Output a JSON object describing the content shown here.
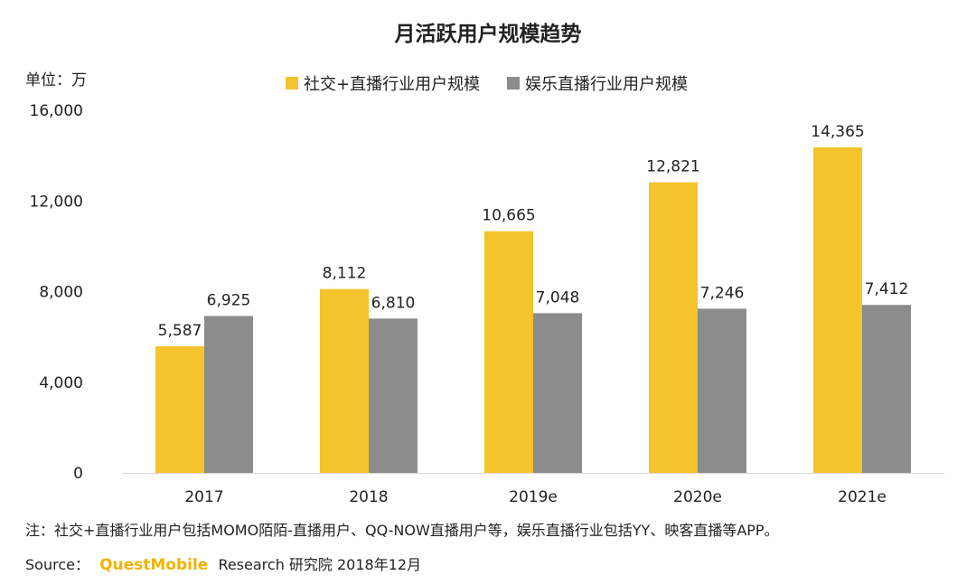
{
  "chart_data": {
    "type": "bar",
    "title": "月活跃用户规模趋势",
    "unit_label": "单位：万",
    "categories": [
      "2017",
      "2018",
      "2019e",
      "2020e",
      "2021e"
    ],
    "series": [
      {
        "name": "社交+直播行业用户规模",
        "values": [
          5587,
          8112,
          10665,
          12821,
          14365
        ],
        "value_labels": [
          "5,587",
          "8,112",
          "10,665",
          "12,821",
          "14,365"
        ],
        "color": "#f5c32c"
      },
      {
        "name": "娱乐直播行业用户规模",
        "values": [
          6925,
          6810,
          7048,
          7246,
          7412
        ],
        "value_labels": [
          "6,925",
          "6,810",
          "7,048",
          "7,246",
          "7,412"
        ],
        "color": "#8c8c8c"
      }
    ],
    "ylim": [
      0,
      16000
    ],
    "yticks": [
      0,
      4000,
      8000,
      12000,
      16000
    ],
    "ytick_labels": [
      "0",
      "4,000",
      "8,000",
      "12,000",
      "16,000"
    ],
    "legend_position": "top",
    "grid": false
  },
  "footer": {
    "note": "注：社交+直播行业用户包括MOMO陌陌-直播用户、QQ-NOW直播用户等，娱乐直播行业包括YY、映客直播等APP。",
    "source_label": "Source：",
    "source_brand": "QuestMobile",
    "source_rest": "Research 研究院 2018年12月"
  }
}
